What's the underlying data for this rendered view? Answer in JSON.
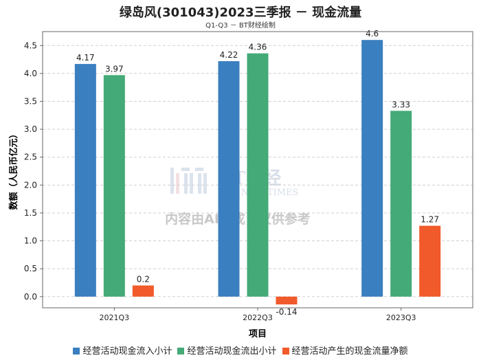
{
  "title": "绿岛风(301043)2023三季报 － 现金流量",
  "subtitle": "Q1-Q3 － BT财经绘制",
  "watermark": {
    "logo_text": "BT财经",
    "logo_sub": "BUSINESSTIMES",
    "notice": "内容由AI生成，仅供参考"
  },
  "chart_data": {
    "type": "bar",
    "xlabel": "项目",
    "ylabel": "数额（人民币亿元）",
    "categories": [
      "2021Q3",
      "2022Q3",
      "2023Q3"
    ],
    "ylim": [
      -0.2,
      4.75
    ],
    "yticks": [
      0.0,
      0.5,
      1.0,
      1.5,
      2.0,
      2.5,
      3.0,
      3.5,
      4.0,
      4.5
    ],
    "grid": true,
    "legend_position": "bottom",
    "series": [
      {
        "name": "经营活动现金流入小计",
        "color": "#3a7fbf",
        "values": [
          4.17,
          4.22,
          4.6
        ],
        "labels": [
          "4.17",
          "4.22",
          "4.6"
        ]
      },
      {
        "name": "经营活动现金流出小计",
        "color": "#44aa77",
        "values": [
          3.97,
          4.36,
          3.33
        ],
        "labels": [
          "3.97",
          "4.36",
          "3.33"
        ]
      },
      {
        "name": "经营活动产生的现金流量净额",
        "color": "#f15a2a",
        "values": [
          0.2,
          -0.14,
          1.27
        ],
        "labels": [
          "0.2",
          "-0.14",
          "1.27"
        ]
      }
    ]
  }
}
